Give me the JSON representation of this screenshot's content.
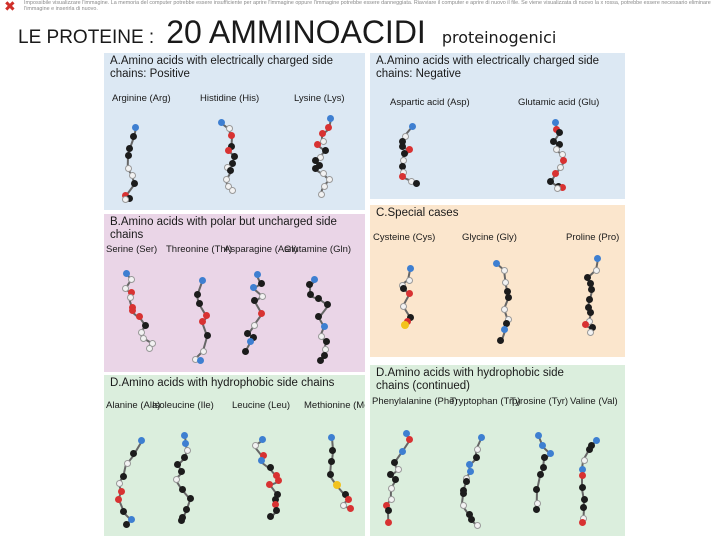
{
  "broken_image_notice": "Impossibile visualizzare l'immagine. La memoria del computer potrebbe essere insufficiente per aprire l'immagine oppure l'immagine potrebbe essere danneggiata. Riavviare il computer e aprire di nuovo il file. Se viene visualizzata di nuovo la x rossa, potrebbe essere necessario eliminare l'immagine e inserirla di nuovo.",
  "title": {
    "part1": "LE PROTEINE :",
    "part2": "20 AMMINOACIDI",
    "part3": "proteinogenici"
  },
  "colors": {
    "carbon": "#1c1c1c",
    "oxygen": "#d83232",
    "nitrogen": "#3e7fd1",
    "hydrogen": "#f2f2f2",
    "sulfur": "#f2c21e"
  },
  "panels": {
    "positive": {
      "title": "A.Amino acids with electrically charged side chains: Positive",
      "bg": "#dce8f3",
      "amino_acids": [
        "Arginine (Arg)",
        "Histidine (His)",
        "Lysine (Lys)"
      ]
    },
    "negative": {
      "title": "A.Amino acids with electrically charged side chains: Negative",
      "bg": "#dce8f3",
      "amino_acids": [
        "Aspartic acid (Asp)",
        "Glutamic acid (Glu)"
      ]
    },
    "polar": {
      "title": "B.Amino acids with polar but uncharged side chains",
      "bg": "#ead5e7",
      "amino_acids": [
        "Serine (Ser)",
        "Threonine (Thr)",
        "Asparagine (Asn)",
        "Glutamine (Gln)"
      ]
    },
    "special": {
      "title": "C.Special cases",
      "bg": "#fbe6cd",
      "amino_acids": [
        "Cysteine (Cys)",
        "Glycine (Gly)",
        "Proline (Pro)"
      ]
    },
    "hydrophobic": {
      "title": "D.Amino acids with hydrophobic side chains",
      "bg": "#dbeedd",
      "amino_acids": [
        "Alanine (Ala)",
        "Isoleucine (Ile)",
        "Leucine (Leu)",
        "Methionine (Met)"
      ]
    },
    "hydrophobic_cont": {
      "title": "D.Amino acids with hydrophobic side chains (continued)",
      "bg": "#dbeedd",
      "amino_acids": [
        "Phenylalanine (Phe)",
        "Tryptophan (Trp)",
        "Tyrosine (Tyr)",
        "Valine (Val)"
      ]
    }
  }
}
